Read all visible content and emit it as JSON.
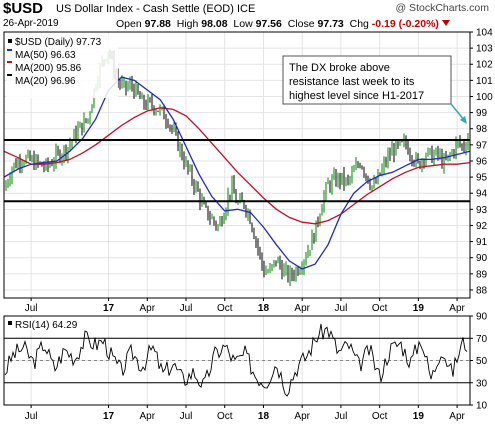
{
  "header": {
    "symbol": "$USD",
    "name": "US Dollar Index - Cash Settle (EOD)",
    "exchange": "ICE",
    "watermark": "@ StockCharts.com",
    "date": "26-Apr-2019",
    "open_label": "Open",
    "open": "97.88",
    "high_label": "High",
    "high": "98.08",
    "low_label": "Low",
    "low": "97.56",
    "close_label": "Close",
    "close": "97.73",
    "chg_label": "Chg",
    "chg": "-0.19 (-0.20%)"
  },
  "legend": [
    {
      "label": "$USD (Daily) 97.73",
      "color": "#000000"
    },
    {
      "label": "MA(50) 96.63",
      "color": "#1f2bbf"
    },
    {
      "label": "MA(200) 95.86",
      "color": "#c0112b"
    },
    {
      "label": "MA(20) 96.96",
      "color": "#000000"
    }
  ],
  "annotation": {
    "lines": [
      "The DX broke above",
      "resistance last week to its",
      "highest level since H1-2017"
    ]
  },
  "rsi_label": "RSI(14) 64.29",
  "colors": {
    "up_bar": "#008000",
    "down_bar": "#000000",
    "ma50": "#1f2bbf",
    "ma200": "#c0112b",
    "grid": "#e4e4e4",
    "arrow": "#3aa7a7"
  },
  "chart_data": [
    {
      "type": "line",
      "title": "US Dollar Index - Cash Settle (EOD)",
      "ylim": [
        87.5,
        104
      ],
      "yticks": [
        88,
        89,
        90,
        91,
        92,
        93,
        94,
        95,
        96,
        97,
        98,
        99,
        100,
        101,
        102,
        103,
        104
      ],
      "xlabels": [
        "Jul",
        "17",
        "Apr",
        "Jul",
        "Oct",
        "18",
        "Apr",
        "Jul",
        "Oct",
        "19",
        "Apr"
      ],
      "x_label_months": [
        6,
        12,
        15,
        18,
        21,
        24,
        27,
        30,
        33,
        36,
        39
      ],
      "x_range_months": [
        3.9,
        40.0
      ],
      "series": [
        {
          "name": "$USD (Daily) 97.73",
          "month": [
            3.9,
            4.5,
            5.3,
            6,
            6.6,
            7.2,
            8,
            8.8,
            9.6,
            10.4,
            11.1,
            11.6,
            12,
            12.3,
            12.7,
            13.2,
            13.8,
            14.6,
            15.6,
            16.6,
            17.4,
            18.2,
            18.8,
            19.4,
            19.9,
            20.5,
            21,
            21.5,
            22,
            22.5,
            23,
            23.5,
            24,
            24.5,
            25,
            25.5,
            26,
            26.5,
            27,
            27.5,
            28,
            28.5,
            29,
            29.5,
            30,
            30.5,
            31,
            31.5,
            32,
            32.5,
            33,
            33.5,
            34,
            34.5,
            35,
            35.5,
            36,
            36.5,
            37,
            37.5,
            38,
            38.5,
            39,
            39.5,
            40
          ],
          "values": [
            94.2,
            95.6,
            96.2,
            96.0,
            95.8,
            95.6,
            96.3,
            96.8,
            97.9,
            98.6,
            101.2,
            102.3,
            103.0,
            102.0,
            101.0,
            100.5,
            100.7,
            99.6,
            99.4,
            98.6,
            97.0,
            95.3,
            94.3,
            93.0,
            92.5,
            91.9,
            93.1,
            94.4,
            93.3,
            93.4,
            92.4,
            90.8,
            89.2,
            89.1,
            89.9,
            89.2,
            88.8,
            89.2,
            89.8,
            90.6,
            91.6,
            93.4,
            94.5,
            94.8,
            94.9,
            94.6,
            95.3,
            96.0,
            95.1,
            94.3,
            95.1,
            96.0,
            96.7,
            96.8,
            97.1,
            96.4,
            95.7,
            96.5,
            96.3,
            96.4,
            95.8,
            96.4,
            97.1,
            96.9,
            97.7
          ]
        },
        {
          "name": "MA(50) 96.63",
          "month": [
            3.9,
            5,
            6,
            7,
            8,
            9,
            10,
            11,
            12,
            13,
            14,
            15,
            16,
            17,
            18,
            19,
            20,
            21,
            22,
            23,
            24,
            25,
            26,
            27,
            28,
            29,
            30,
            31,
            32,
            33,
            34,
            35,
            36,
            37,
            38,
            39,
            40
          ],
          "values": [
            95.0,
            95.5,
            95.8,
            95.9,
            96.0,
            96.6,
            97.4,
            98.6,
            100.4,
            101.2,
            101.0,
            100.4,
            99.8,
            98.6,
            96.9,
            95.2,
            93.8,
            92.9,
            93.0,
            92.8,
            91.9,
            90.8,
            89.8,
            89.3,
            89.6,
            90.8,
            92.7,
            94.0,
            94.7,
            95.1,
            95.3,
            95.7,
            96.1,
            96.1,
            96.2,
            96.4,
            96.6
          ]
        },
        {
          "name": "MA(200) 95.86",
          "month": [
            3.9,
            5,
            6,
            7,
            8,
            9,
            10,
            11,
            12,
            13,
            14,
            15,
            16,
            17,
            18,
            19,
            20,
            21,
            22,
            23,
            24,
            25,
            26,
            27,
            28,
            29,
            30,
            31,
            32,
            33,
            34,
            35,
            36,
            37,
            38,
            39,
            40
          ],
          "values": [
            96.6,
            96.2,
            95.8,
            95.8,
            95.9,
            96.1,
            96.5,
            97.0,
            97.6,
            98.2,
            98.7,
            99.1,
            99.3,
            99.2,
            98.8,
            98.0,
            97.1,
            96.2,
            95.3,
            94.5,
            93.7,
            93.0,
            92.5,
            92.2,
            92.1,
            92.3,
            92.7,
            93.3,
            93.9,
            94.4,
            94.9,
            95.3,
            95.6,
            95.7,
            95.8,
            95.8,
            95.9
          ]
        }
      ],
      "horizontal_lines": [
        93.5,
        97.3
      ],
      "grid": true
    },
    {
      "type": "line",
      "title": "RSI(14) 64.29",
      "ylim": [
        10,
        90
      ],
      "yticks": [
        10,
        30,
        50,
        70,
        90
      ],
      "reference_lines": [
        30,
        70
      ],
      "xlabels": [
        "Jul",
        "17",
        "Apr",
        "Jul",
        "Oct",
        "18",
        "Apr",
        "Jul",
        "Oct",
        "19",
        "Apr"
      ],
      "series": [
        {
          "name": "RSI(14) 64.29",
          "month": [
            3.9,
            4.6,
            5.4,
            6.2,
            7,
            7.8,
            8.6,
            9.4,
            10.2,
            11,
            11.6,
            12.3,
            13,
            13.8,
            14.6,
            15.4,
            16.2,
            17,
            17.8,
            18.6,
            19.4,
            20.2,
            21,
            21.8,
            22.6,
            23.4,
            24.2,
            25,
            25.8,
            26.6,
            27.4,
            28.2,
            29,
            29.8,
            30.6,
            31.4,
            32.2,
            33,
            33.8,
            34.6,
            35.4,
            36.2,
            37,
            37.8,
            38.6,
            39.4,
            40
          ],
          "values": [
            38,
            55,
            62,
            48,
            66,
            42,
            60,
            52,
            70,
            64,
            68,
            52,
            40,
            58,
            44,
            62,
            38,
            47,
            32,
            40,
            26,
            55,
            63,
            48,
            56,
            36,
            30,
            48,
            24,
            44,
            55,
            73,
            79,
            57,
            64,
            45,
            60,
            35,
            60,
            66,
            48,
            70,
            33,
            62,
            38,
            66,
            64
          ]
        }
      ],
      "grid": true
    }
  ]
}
